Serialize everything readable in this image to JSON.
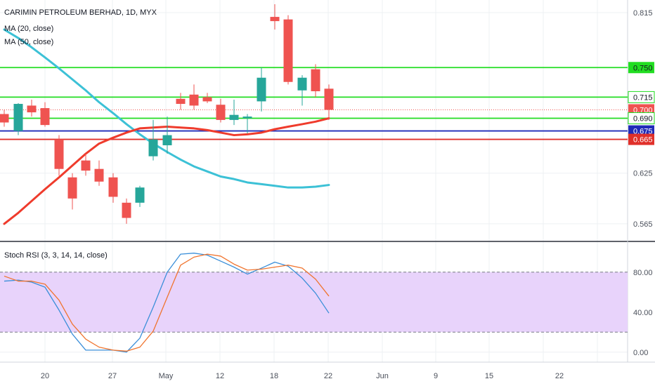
{
  "header": {
    "symbol": "CARIMIN PETROLEUM BERHAD, 1D, MYX",
    "ma20_label": "MA (20, close)",
    "ma50_label": "MA (50, close)",
    "stoch_label": "Stoch RSI (3, 3, 14, 14, close)"
  },
  "colors": {
    "up": "#26a69a",
    "down": "#ef5350",
    "ma20": "#ef3b2c",
    "ma50": "#3cc1d6",
    "green_line": "#22dd22",
    "blue_line": "#1f2bb8",
    "red_line": "#e0302a",
    "stoch_k": "#3b8fd9",
    "stoch_d": "#f0742e",
    "stoch_band": "#e8d3fb"
  },
  "chart_data": [
    {
      "type": "candlestick",
      "title": "CARIMIN PETROLEUM BERHAD, 1D, MYX",
      "ylim": [
        0.545,
        0.83
      ],
      "price_ticks": [
        "0.815",
        "0.750",
        "0.715",
        "0.700",
        "0.690",
        "0.675",
        "0.665",
        "0.625",
        "0.565"
      ],
      "x_tick_labels": [
        "20",
        "27",
        "May",
        "12",
        "18",
        "22",
        "Jun",
        "9",
        "15",
        "22"
      ],
      "candles": [
        {
          "date": "2020-04-16",
          "o": 0.695,
          "h": 0.7,
          "l": 0.68,
          "c": 0.685
        },
        {
          "date": "2020-04-17",
          "o": 0.675,
          "h": 0.708,
          "l": 0.67,
          "c": 0.707
        },
        {
          "date": "2020-04-20",
          "o": 0.705,
          "h": 0.712,
          "l": 0.692,
          "c": 0.697
        },
        {
          "date": "2020-04-21",
          "o": 0.702,
          "h": 0.709,
          "l": 0.68,
          "c": 0.682
        },
        {
          "date": "2020-04-22",
          "o": 0.665,
          "h": 0.67,
          "l": 0.622,
          "c": 0.63
        },
        {
          "date": "2020-04-23",
          "o": 0.62,
          "h": 0.625,
          "l": 0.582,
          "c": 0.595
        },
        {
          "date": "2020-04-24",
          "o": 0.64,
          "h": 0.648,
          "l": 0.622,
          "c": 0.628
        },
        {
          "date": "2020-04-27",
          "o": 0.63,
          "h": 0.64,
          "l": 0.61,
          "c": 0.615
        },
        {
          "date": "2020-04-28",
          "o": 0.62,
          "h": 0.625,
          "l": 0.59,
          "c": 0.597
        },
        {
          "date": "2020-04-29",
          "o": 0.59,
          "h": 0.595,
          "l": 0.565,
          "c": 0.572
        },
        {
          "date": "2020-04-30",
          "o": 0.59,
          "h": 0.61,
          "l": 0.585,
          "c": 0.608
        },
        {
          "date": "2020-05-04",
          "o": 0.645,
          "h": 0.688,
          "l": 0.64,
          "c": 0.665
        },
        {
          "date": "2020-05-05",
          "o": 0.658,
          "h": 0.692,
          "l": 0.648,
          "c": 0.67
        },
        {
          "date": "2020-05-06",
          "o": 0.713,
          "h": 0.72,
          "l": 0.7,
          "c": 0.707
        },
        {
          "date": "2020-05-07",
          "o": 0.718,
          "h": 0.73,
          "l": 0.7,
          "c": 0.705
        },
        {
          "date": "2020-05-08",
          "o": 0.715,
          "h": 0.72,
          "l": 0.708,
          "c": 0.71
        },
        {
          "date": "2020-05-11",
          "o": 0.706,
          "h": 0.713,
          "l": 0.685,
          "c": 0.688
        },
        {
          "date": "2020-05-12",
          "o": 0.688,
          "h": 0.712,
          "l": 0.682,
          "c": 0.694
        },
        {
          "date": "2020-05-13",
          "o": 0.69,
          "h": 0.695,
          "l": 0.672,
          "c": 0.692
        },
        {
          "date": "2020-05-15",
          "o": 0.71,
          "h": 0.75,
          "l": 0.698,
          "c": 0.738
        },
        {
          "date": "2020-05-18",
          "o": 0.81,
          "h": 0.825,
          "l": 0.795,
          "c": 0.805
        },
        {
          "date": "2020-05-19",
          "o": 0.807,
          "h": 0.812,
          "l": 0.73,
          "c": 0.733
        },
        {
          "date": "2020-05-20",
          "o": 0.723,
          "h": 0.741,
          "l": 0.705,
          "c": 0.738
        },
        {
          "date": "2020-05-21",
          "o": 0.748,
          "h": 0.754,
          "l": 0.715,
          "c": 0.722
        },
        {
          "date": "2020-05-22",
          "o": 0.725,
          "h": 0.73,
          "l": 0.688,
          "c": 0.7
        }
      ],
      "ma20_values": [
        0.565,
        0.578,
        0.592,
        0.606,
        0.62,
        0.634,
        0.648,
        0.66,
        0.667,
        0.673,
        0.678,
        0.679,
        0.68,
        0.679,
        0.678,
        0.676,
        0.673,
        0.67,
        0.671,
        0.673,
        0.677,
        0.68,
        0.683,
        0.686,
        0.69
      ],
      "ma50_values": [
        0.795,
        0.785,
        0.774,
        0.762,
        0.749,
        0.736,
        0.723,
        0.709,
        0.696,
        0.683,
        0.671,
        0.66,
        0.65,
        0.641,
        0.633,
        0.627,
        0.621,
        0.618,
        0.614,
        0.612,
        0.61,
        0.608,
        0.608,
        0.609,
        0.611
      ],
      "horizontal_levels": [
        {
          "value": 0.75,
          "color": "green",
          "label": "0.750"
        },
        {
          "value": 0.715,
          "color": "green",
          "label": "0.715"
        },
        {
          "value": 0.7,
          "color": "red-dotted",
          "label": "0.700"
        },
        {
          "value": 0.69,
          "color": "green",
          "label": "0.690"
        },
        {
          "value": 0.675,
          "color": "blue",
          "label": "0.675"
        },
        {
          "value": 0.665,
          "color": "red",
          "label": "0.665"
        }
      ]
    },
    {
      "type": "line",
      "title": "Stoch RSI (3, 3, 14, 14, close)",
      "ylim": [
        -10,
        110
      ],
      "y_tick_labels": [
        "80.00",
        "40.00",
        "0.00"
      ],
      "bands": [
        20,
        80
      ],
      "series": [
        {
          "name": "K",
          "values": [
            71,
            72,
            70,
            65,
            42,
            18,
            2,
            2,
            2,
            0,
            14,
            45,
            80,
            98,
            99,
            97,
            91,
            85,
            78,
            84,
            90,
            86,
            74,
            59,
            39
          ]
        },
        {
          "name": "D",
          "values": [
            76,
            71,
            71,
            68,
            52,
            28,
            13,
            5,
            2,
            1,
            5,
            21,
            55,
            87,
            95,
            98,
            96,
            88,
            82,
            83,
            85,
            87,
            84,
            73,
            56
          ]
        }
      ]
    }
  ]
}
